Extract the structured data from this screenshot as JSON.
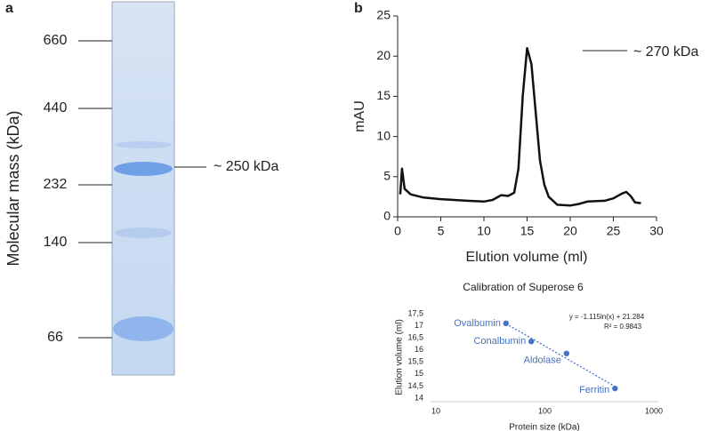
{
  "panel_labels": [
    "a",
    "b"
  ],
  "gel": {
    "axis_label": "Molecular mass (kDa)",
    "markers": [
      660,
      440,
      232,
      140,
      66
    ],
    "annotation": "~ 250 kDa"
  },
  "chart_data": [
    {
      "type": "line",
      "xlabel": "Elution volume (ml)",
      "ylabel": "mAU",
      "annotation": "~ 270 kDa",
      "color": "#111111",
      "x": [
        0.3,
        0.5,
        0.8,
        1.5,
        3,
        5,
        8,
        10,
        11,
        12,
        12.8,
        13.5,
        14,
        14.5,
        15,
        15.5,
        16,
        16.5,
        17,
        17.5,
        18.5,
        20,
        21,
        22,
        24,
        25,
        26,
        26.5,
        27,
        27.5,
        28.2
      ],
      "values": [
        2.8,
        6,
        3.5,
        2.8,
        2.4,
        2.2,
        2.0,
        1.9,
        2.1,
        2.7,
        2.6,
        3,
        6,
        15,
        21,
        19,
        13,
        7,
        4,
        2.5,
        1.5,
        1.4,
        1.6,
        1.9,
        2,
        2.3,
        2.9,
        3.1,
        2.6,
        1.8,
        1.7
      ],
      "xlim": [
        0,
        30
      ],
      "xticks": [
        0,
        5,
        10,
        15,
        20,
        25,
        30
      ],
      "ylim": [
        0,
        25
      ],
      "yticks": [
        0,
        5,
        10,
        15,
        20,
        25
      ]
    },
    {
      "type": "scatter",
      "title": "Calibration of Superose 6",
      "xlabel": "Protein size (kDa)",
      "ylabel": "Elution volume (ml)",
      "equation": "y = -1.115ln(x) + 21.284",
      "r_squared_label": "R² = 0.9843",
      "color": "#4472c4",
      "xlog": true,
      "labels": [
        "Ovalbumin",
        "Conalbumin",
        "Aldolase",
        "Ferritin"
      ],
      "x": [
        44,
        75,
        158,
        440
      ],
      "values": [
        17.1,
        16.35,
        15.85,
        14.4
      ],
      "xlim": [
        10,
        1000
      ],
      "xticks": [
        10,
        100,
        1000
      ],
      "ylim": [
        14,
        17.5
      ],
      "yticks": [
        14,
        {
          "value": 14.5,
          "label": "14,5"
        },
        15,
        {
          "value": 15.5,
          "label": "15,5"
        },
        16,
        {
          "value": 16.5,
          "label": "16,5"
        },
        17,
        {
          "value": 17.5,
          "label": "17,5"
        }
      ]
    }
  ]
}
